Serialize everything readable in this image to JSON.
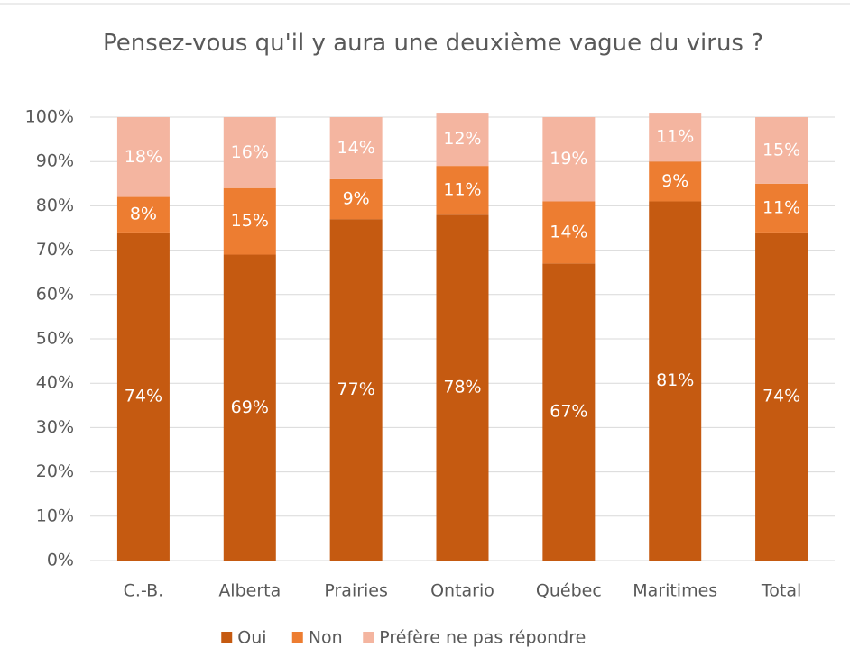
{
  "chart_data": {
    "type": "stacked_bar",
    "title": "Pensez-vous qu'il y aura une deuxième vague du virus ?",
    "categories": [
      "C.-B.",
      "Alberta",
      "Prairies",
      "Ontario",
      "Québec",
      "Maritimes",
      "Total"
    ],
    "series": [
      {
        "name": "Oui",
        "color": "#c55a11",
        "values": [
          74,
          69,
          77,
          78,
          67,
          81,
          74
        ],
        "value_labels": [
          "74%",
          "69%",
          "77%",
          "78%",
          "67%",
          "81%",
          "74%"
        ]
      },
      {
        "name": "Non",
        "color": "#ed7d31",
        "values": [
          8,
          15,
          9,
          11,
          14,
          9,
          11
        ],
        "value_labels": [
          "8%",
          "15%",
          "9%",
          "11%",
          "14%",
          "9%",
          "11%"
        ]
      },
      {
        "name": "Préfère ne pas répondre",
        "color": "#f4b5a0",
        "values": [
          18,
          16,
          14,
          12,
          19,
          11,
          15
        ],
        "value_labels": [
          "18%",
          "16%",
          "14%",
          "12%",
          "19%",
          "11%",
          "15%"
        ]
      }
    ],
    "ylim": [
      0,
      100
    ],
    "yticks": [
      {
        "value": 0,
        "label": "0%"
      },
      {
        "value": 10,
        "label": "10%"
      },
      {
        "value": 20,
        "label": "20%"
      },
      {
        "value": 30,
        "label": "30%"
      },
      {
        "value": 40,
        "label": "40%"
      },
      {
        "value": 50,
        "label": "50%"
      },
      {
        "value": 60,
        "label": "60%"
      },
      {
        "value": 70,
        "label": "70%"
      },
      {
        "value": 80,
        "label": "80%"
      },
      {
        "value": 90,
        "label": "90%"
      },
      {
        "value": 100,
        "label": "100%"
      }
    ],
    "grid": true,
    "legend": "bottom"
  }
}
